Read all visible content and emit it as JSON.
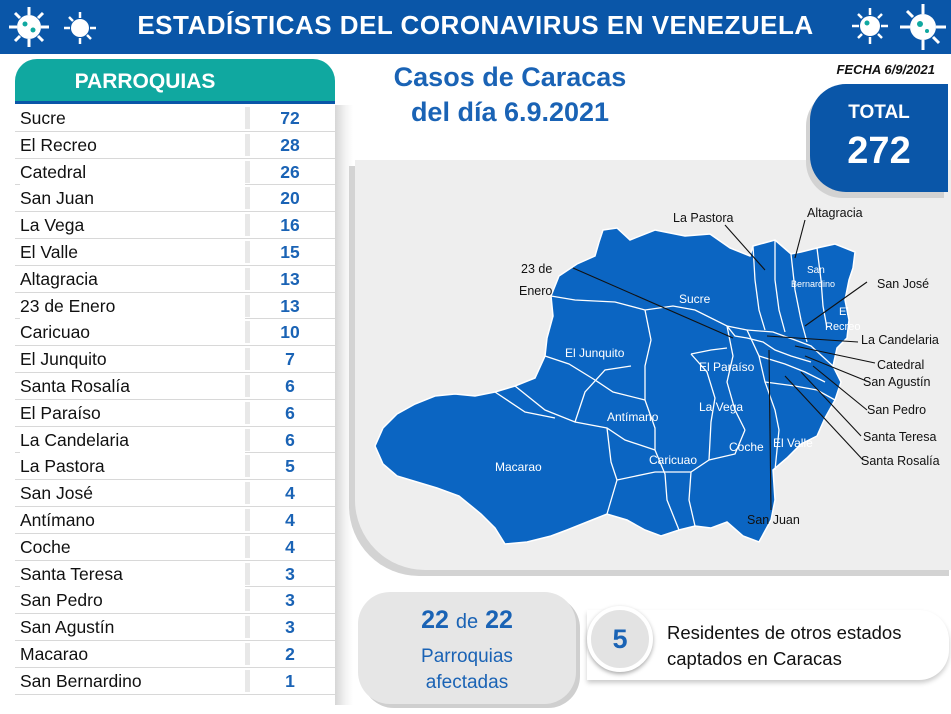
{
  "header": {
    "title": "ESTADÍSTICAS DEL CORONAVIRUS EN VENEZUELA"
  },
  "table": {
    "header": "PARROQUIAS",
    "rows": [
      {
        "name": "Sucre",
        "value": "72"
      },
      {
        "name": "El Recreo",
        "value": "28"
      },
      {
        "name": "Catedral",
        "value": "26"
      },
      {
        "name": "San Juan",
        "value": "20"
      },
      {
        "name": "La Vega",
        "value": "16"
      },
      {
        "name": "El Valle",
        "value": "15"
      },
      {
        "name": "Altagracia",
        "value": "13"
      },
      {
        "name": "23 de Enero",
        "value": "13"
      },
      {
        "name": "Caricuao",
        "value": "10"
      },
      {
        "name": "El Junquito",
        "value": "7"
      },
      {
        "name": "Santa Rosalía",
        "value": "6"
      },
      {
        "name": "El Paraíso",
        "value": "6"
      },
      {
        "name": "La Candelaria",
        "value": "6"
      },
      {
        "name": "La Pastora",
        "value": "5"
      },
      {
        "name": "San José",
        "value": "4"
      },
      {
        "name": "Antímano",
        "value": "4"
      },
      {
        "name": "Coche",
        "value": "4"
      },
      {
        "name": "Santa Teresa",
        "value": "3"
      },
      {
        "name": "San Pedro",
        "value": "3"
      },
      {
        "name": "San Agustín",
        "value": "3"
      },
      {
        "name": "Macarao",
        "value": "2"
      },
      {
        "name": "San Bernardino",
        "value": "1"
      }
    ]
  },
  "title": {
    "line1": "Casos de Caracas",
    "line2": "del día 6.9.2021"
  },
  "date": "FECHA 6/9/2021",
  "total": {
    "label": "TOTAL",
    "value": "272"
  },
  "map": {
    "inside_labels": {
      "sucre": "Sucre",
      "el_junquito": "El Junquito",
      "el_paraiso": "El Paraíso",
      "la_vega": "La Vega",
      "antimano": "Antímano",
      "macarao": "Macarao",
      "caricuao": "Caricuao",
      "coche": "Coche",
      "el_valle": "El Valle",
      "san_bernardino_1": "San",
      "san_bernardino_2": "Bernardino",
      "el_recreo_1": "El",
      "el_recreo_2": "Recreo"
    },
    "callouts": {
      "la_pastora": "La Pastora",
      "altagracia": "Altagracia",
      "enero_1": "23 de",
      "enero_2": "Enero",
      "san_jose": "San José",
      "la_candelaria": "La Candelaria",
      "catedral": "Catedral",
      "san_agustin": "San Agustín",
      "san_pedro": "San Pedro",
      "santa_teresa": "Santa Teresa",
      "santa_rosalia": "Santa Rosalía",
      "san_juan": "San Juan"
    },
    "fill_color": "#0b65c2"
  },
  "affected": {
    "count": "22",
    "connector": "de",
    "total": "22",
    "line1": "Parroquias",
    "line2": "afectadas"
  },
  "residents": {
    "count": "5",
    "line1": "Residentes de otros estados",
    "line2": "captados en Caracas"
  }
}
